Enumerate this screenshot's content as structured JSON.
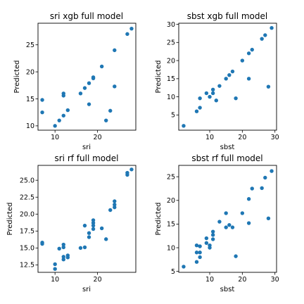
{
  "chart_data": [
    {
      "type": "scatter",
      "title": "sri xgb full model",
      "xlabel": "sri",
      "ylabel": "Predicted",
      "xlim": [
        6.0,
        29.0
      ],
      "ylim": [
        9.2,
        29.0
      ],
      "xticks": [
        10,
        20
      ],
      "yticks": [
        10,
        15,
        20,
        25
      ],
      "ytick_labels": [
        "10",
        "15",
        "20",
        "25"
      ],
      "color": "#1f77b4",
      "points": [
        {
          "x": 7,
          "y": 12.5
        },
        {
          "x": 7,
          "y": 14.8
        },
        {
          "x": 10,
          "y": 10.0
        },
        {
          "x": 11,
          "y": 11.0
        },
        {
          "x": 12,
          "y": 11.9
        },
        {
          "x": 12,
          "y": 15.6
        },
        {
          "x": 12,
          "y": 16.0
        },
        {
          "x": 13,
          "y": 12.9
        },
        {
          "x": 16,
          "y": 16.0
        },
        {
          "x": 17,
          "y": 17.0
        },
        {
          "x": 18,
          "y": 14.0
        },
        {
          "x": 18,
          "y": 17.9
        },
        {
          "x": 19,
          "y": 18.8
        },
        {
          "x": 19,
          "y": 19.0
        },
        {
          "x": 21,
          "y": 21.0
        },
        {
          "x": 22,
          "y": 11.0
        },
        {
          "x": 23,
          "y": 12.8
        },
        {
          "x": 24,
          "y": 17.3
        },
        {
          "x": 24,
          "y": 24.0
        },
        {
          "x": 27,
          "y": 27.0
        },
        {
          "x": 28,
          "y": 28.0
        }
      ]
    },
    {
      "type": "scatter",
      "title": "sbst xgb full model",
      "xlabel": "sbst",
      "ylabel": "Predicted",
      "xlim": [
        0.5,
        30.5
      ],
      "ylim": [
        0.8,
        30.3
      ],
      "xticks": [
        10,
        20,
        30
      ],
      "yticks": [
        5,
        10,
        15,
        20,
        25,
        30
      ],
      "ytick_labels": [
        "5",
        "10",
        "15",
        "20",
        "25",
        "30"
      ],
      "color": "#1f77b4",
      "points": [
        {
          "x": 2,
          "y": 2.0
        },
        {
          "x": 6,
          "y": 6.0
        },
        {
          "x": 7,
          "y": 7.0
        },
        {
          "x": 7,
          "y": 9.6
        },
        {
          "x": 9,
          "y": 11.0
        },
        {
          "x": 10,
          "y": 10.0
        },
        {
          "x": 11,
          "y": 11.0
        },
        {
          "x": 11,
          "y": 12.0
        },
        {
          "x": 12,
          "y": 9.0
        },
        {
          "x": 13,
          "y": 13.0
        },
        {
          "x": 15,
          "y": 15.0
        },
        {
          "x": 16,
          "y": 16.0
        },
        {
          "x": 17,
          "y": 17.0
        },
        {
          "x": 18,
          "y": 9.6
        },
        {
          "x": 20,
          "y": 20.0
        },
        {
          "x": 22,
          "y": 15.0
        },
        {
          "x": 22,
          "y": 22.0
        },
        {
          "x": 23,
          "y": 23.0
        },
        {
          "x": 26,
          "y": 26.0
        },
        {
          "x": 27,
          "y": 27.0
        },
        {
          "x": 28,
          "y": 12.8
        },
        {
          "x": 29,
          "y": 29.0
        }
      ]
    },
    {
      "type": "scatter",
      "title": "sri rf full model",
      "xlabel": "sri",
      "ylabel": "Predicted",
      "xlim": [
        6.0,
        29.0
      ],
      "ylim": [
        11.4,
        27.2
      ],
      "xticks": [
        10,
        20
      ],
      "yticks": [
        12.5,
        15.0,
        17.5,
        20.0,
        22.5,
        25.0
      ],
      "ytick_labels": [
        "12.5",
        "15.0",
        "17.5",
        "20.0",
        "22.5",
        "25.0"
      ],
      "color": "#1f77b4",
      "points": [
        {
          "x": 7,
          "y": 15.6
        },
        {
          "x": 7,
          "y": 15.8
        },
        {
          "x": 10,
          "y": 11.9
        },
        {
          "x": 10,
          "y": 12.6
        },
        {
          "x": 11,
          "y": 14.9
        },
        {
          "x": 12,
          "y": 13.3
        },
        {
          "x": 12,
          "y": 13.7
        },
        {
          "x": 12,
          "y": 15.1
        },
        {
          "x": 12,
          "y": 15.5
        },
        {
          "x": 13,
          "y": 13.6
        },
        {
          "x": 13,
          "y": 13.9
        },
        {
          "x": 16,
          "y": 15.0
        },
        {
          "x": 17,
          "y": 15.1
        },
        {
          "x": 17,
          "y": 18.3
        },
        {
          "x": 18,
          "y": 16.6
        },
        {
          "x": 18,
          "y": 17.2
        },
        {
          "x": 19,
          "y": 17.8
        },
        {
          "x": 19,
          "y": 18.3
        },
        {
          "x": 19,
          "y": 18.7
        },
        {
          "x": 19,
          "y": 19.1
        },
        {
          "x": 21,
          "y": 17.9
        },
        {
          "x": 22,
          "y": 16.3
        },
        {
          "x": 23,
          "y": 20.6
        },
        {
          "x": 24,
          "y": 21.0
        },
        {
          "x": 24,
          "y": 21.4
        },
        {
          "x": 24,
          "y": 21.9
        },
        {
          "x": 27,
          "y": 25.8
        },
        {
          "x": 27,
          "y": 26.1
        },
        {
          "x": 28,
          "y": 26.6
        }
      ]
    },
    {
      "type": "scatter",
      "title": "sbst rf full model",
      "xlabel": "sbst",
      "ylabel": "Predicted",
      "xlim": [
        0.5,
        30.5
      ],
      "ylim": [
        4.8,
        27.4
      ],
      "xticks": [
        10,
        20,
        30
      ],
      "yticks": [
        5,
        10,
        15,
        20,
        25
      ],
      "ytick_labels": [
        "5",
        "10",
        "15",
        "20",
        "25"
      ],
      "color": "#1f77b4",
      "points": [
        {
          "x": 2,
          "y": 6.0
        },
        {
          "x": 6,
          "y": 7.0
        },
        {
          "x": 6,
          "y": 9.0
        },
        {
          "x": 6,
          "y": 10.5
        },
        {
          "x": 7,
          "y": 8.0
        },
        {
          "x": 7,
          "y": 9.0
        },
        {
          "x": 7,
          "y": 10.3
        },
        {
          "x": 9,
          "y": 11.0
        },
        {
          "x": 9,
          "y": 12.0
        },
        {
          "x": 10,
          "y": 10.0
        },
        {
          "x": 10,
          "y": 10.5
        },
        {
          "x": 11,
          "y": 11.8
        },
        {
          "x": 11,
          "y": 12.7
        },
        {
          "x": 11,
          "y": 13.4
        },
        {
          "x": 13,
          "y": 15.5
        },
        {
          "x": 15,
          "y": 14.3
        },
        {
          "x": 15,
          "y": 17.3
        },
        {
          "x": 16,
          "y": 14.8
        },
        {
          "x": 17,
          "y": 14.3
        },
        {
          "x": 18,
          "y": 8.2
        },
        {
          "x": 20,
          "y": 17.3
        },
        {
          "x": 22,
          "y": 15.2
        },
        {
          "x": 22,
          "y": 20.3
        },
        {
          "x": 23,
          "y": 22.5
        },
        {
          "x": 26,
          "y": 22.6
        },
        {
          "x": 27,
          "y": 24.8
        },
        {
          "x": 28,
          "y": 16.2
        },
        {
          "x": 29,
          "y": 26.2
        }
      ]
    }
  ]
}
